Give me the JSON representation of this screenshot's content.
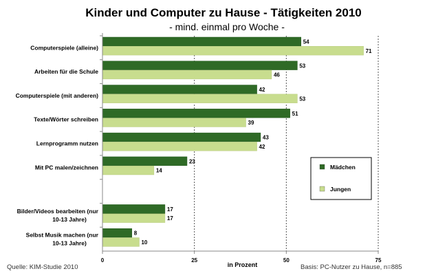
{
  "chart_data": {
    "type": "bar",
    "orientation": "horizontal",
    "title": "Kinder und Computer zu Hause - Tätigkeiten 2010",
    "subtitle": "- mind. einmal pro Woche -",
    "xlabel": "in Prozent",
    "xlim": [
      0,
      75
    ],
    "xticks": [
      0,
      25,
      50,
      75
    ],
    "grid": "vertical dashed",
    "legend_position": "right",
    "categories": [
      "Computerspiele (alleine)",
      "Arbeiten für die Schule",
      "Computerspiele (mit anderen)",
      "Texte/Wörter schreiben",
      "Lernprogramm nutzen",
      "Mit PC malen/zeichnen",
      "",
      "Bilder/Videos bearbeiten (nur 10-13 Jahre)",
      "Selbst Musik machen (nur 10-13 Jahre)"
    ],
    "series": [
      {
        "name": "Mädchen",
        "color": "#2f6a26",
        "values": [
          54,
          53,
          42,
          51,
          43,
          23,
          null,
          17,
          8
        ]
      },
      {
        "name": "Jungen",
        "color": "#c8dd8e",
        "values": [
          71,
          46,
          53,
          39,
          42,
          14,
          null,
          17,
          10
        ]
      }
    ]
  },
  "footer": {
    "source": "Quelle: KIM-Studie 2010",
    "basis": "Basis: PC-Nutzer zu Hause, n=885"
  }
}
